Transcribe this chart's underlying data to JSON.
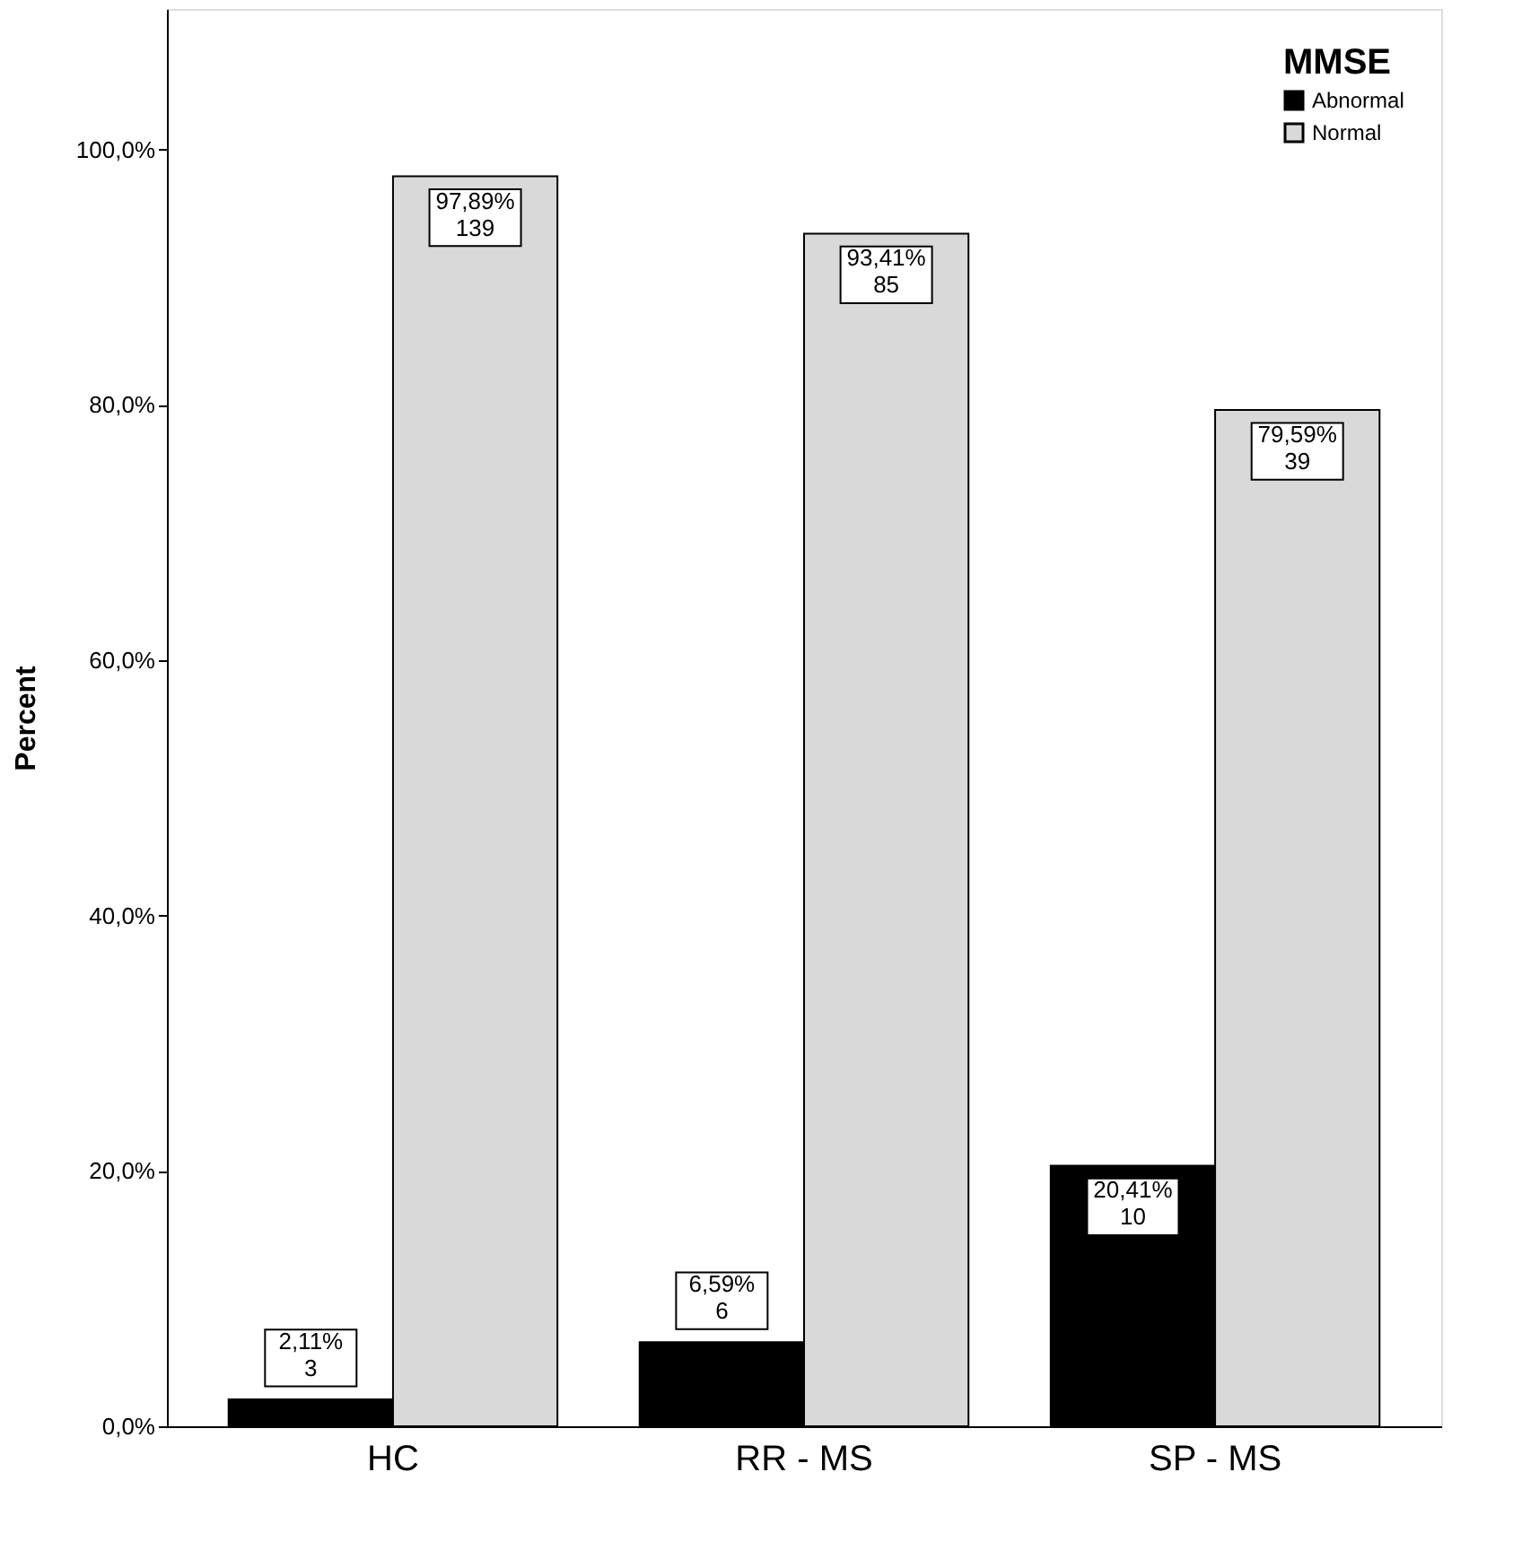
{
  "chart_data": {
    "type": "bar",
    "ylabel": "Percent",
    "legend_title": "MMSE",
    "legend": "top right",
    "grid": false,
    "categories": [
      "HC",
      "RR - MS",
      "SP  - MS"
    ],
    "series": [
      {
        "name": "Abnormal",
        "color": "#000000",
        "values": [
          2.11,
          6.59,
          20.41
        ],
        "value_labels": [
          "2,11%\n3",
          "6,59%\n6",
          "20,41%\n10"
        ]
      },
      {
        "name": "Normal",
        "color": "#d9d9d9",
        "values": [
          97.89,
          93.41,
          79.59
        ],
        "value_labels": [
          "97,89%\n139",
          "93,41%\n85",
          "79,59%\n39"
        ]
      }
    ],
    "ylim": [
      0,
      111
    ],
    "yticks": [
      {
        "value": 0,
        "label": "0,0%"
      },
      {
        "value": 20,
        "label": "20,0%"
      },
      {
        "value": 40,
        "label": "40,0%"
      },
      {
        "value": 60,
        "label": "60,0%"
      },
      {
        "value": 80,
        "label": "80,0%"
      },
      {
        "value": 100,
        "label": "100,0%"
      }
    ]
  }
}
